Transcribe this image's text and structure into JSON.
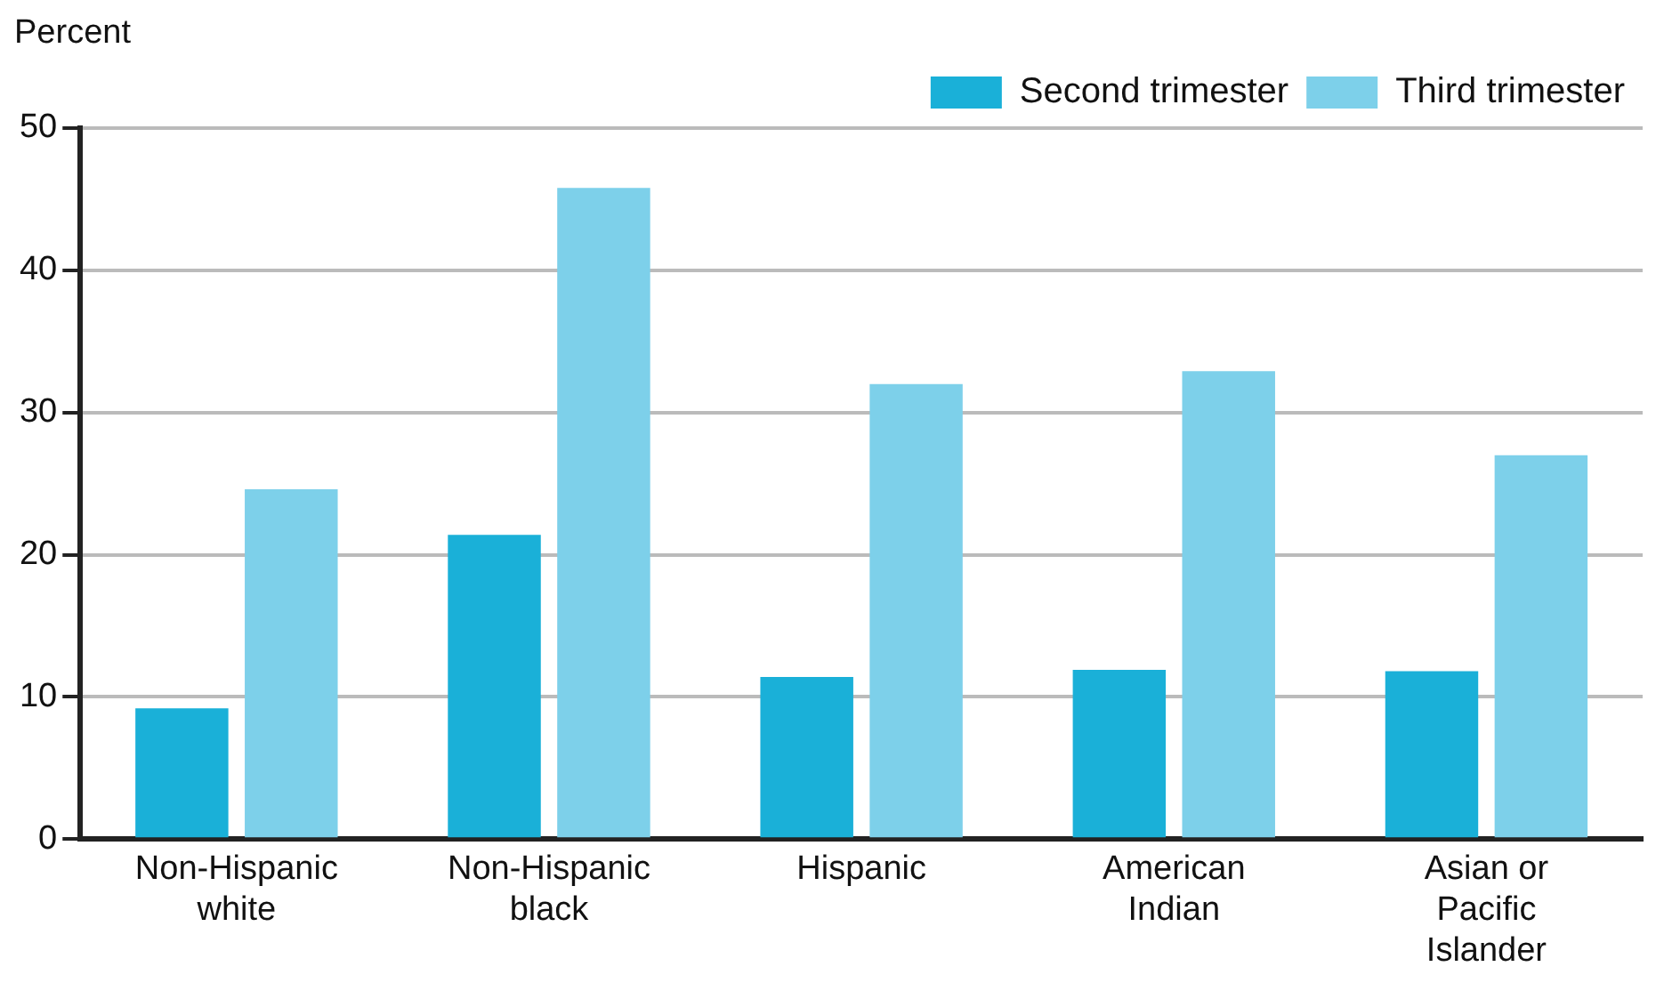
{
  "chart_data": {
    "type": "bar",
    "ylabel": "Percent",
    "categories": [
      "Non-Hispanic white",
      "Non-Hispanic black",
      "Hispanic",
      "American Indian",
      "Asian or Pacific Islander"
    ],
    "series": [
      {
        "name": "Second trimester",
        "color": "#1ab0d8",
        "values": [
          9.2,
          21.4,
          11.4,
          11.9,
          11.8
        ]
      },
      {
        "name": "Third trimester",
        "color": "#7dd0ea",
        "values": [
          24.6,
          45.8,
          32.0,
          32.9,
          27.0
        ]
      }
    ],
    "ylim": [
      0,
      50
    ],
    "yticks": [
      0,
      10,
      20,
      30,
      40,
      50
    ],
    "grid": "y",
    "legend": "top right"
  }
}
